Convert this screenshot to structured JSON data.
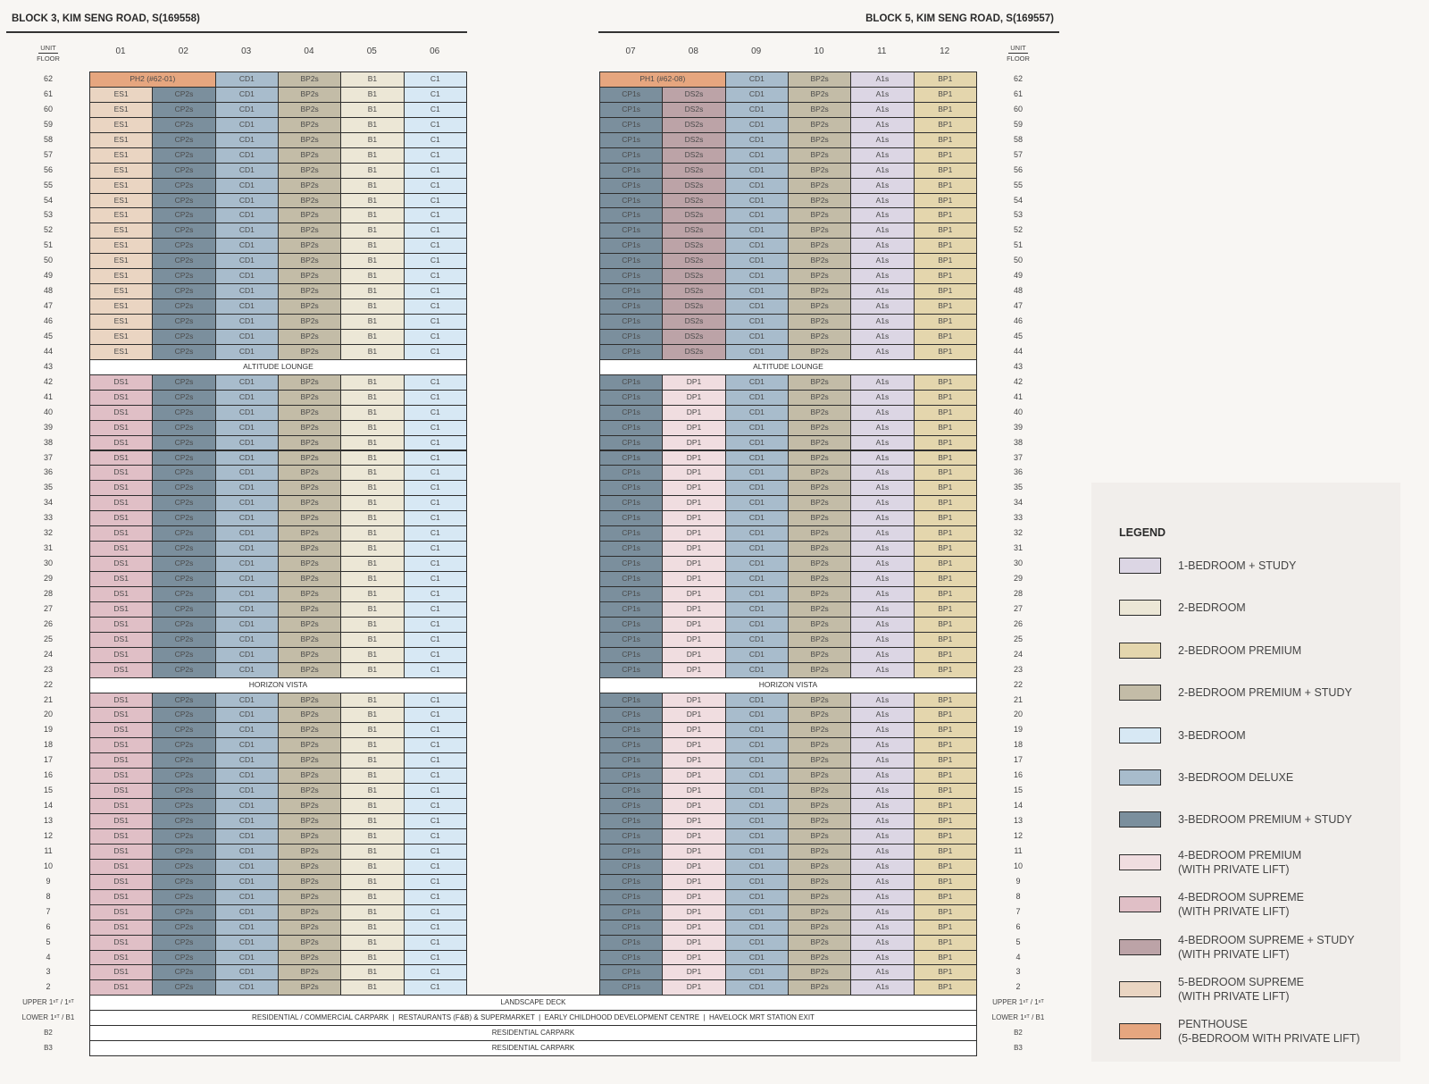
{
  "blocks": [
    {
      "title": "BLOCK 3, KIM SENG ROAD, S(169558)",
      "columns": [
        "01",
        "02",
        "03",
        "04",
        "05",
        "06"
      ]
    },
    {
      "title": "BLOCK 5, KIM SENG ROAD, S(169557)",
      "columns": [
        "07",
        "08",
        "09",
        "10",
        "11",
        "12"
      ]
    }
  ],
  "unit_floor_header": {
    "unit": "UNIT",
    "floor": "FLOOR"
  },
  "segments": [
    {
      "floors": [
        "62"
      ],
      "left": [
        "PH2 (#62-01)",
        "CD1",
        "BP2s",
        "B1",
        "C1"
      ],
      "right": [
        "PH1 (#62-08)",
        "CD1",
        "BP2s",
        "A1s",
        "BP1"
      ]
    },
    {
      "floors": [
        "61",
        "60",
        "59",
        "58",
        "57",
        "56",
        "55",
        "54",
        "53",
        "52",
        "51",
        "50",
        "49",
        "48",
        "47",
        "46",
        "45",
        "44"
      ],
      "left": [
        "ES1",
        "CP2s",
        "CD1",
        "BP2s",
        "B1",
        "C1"
      ],
      "right": [
        "CP1s",
        "DS2s",
        "CD1",
        "BP2s",
        "A1s",
        "BP1"
      ]
    },
    {
      "floors": [
        "43"
      ],
      "left": [
        "ALTITUDE LOUNGE"
      ],
      "right": [
        "ALTITUDE LOUNGE"
      ]
    },
    {
      "floors": [
        "42",
        "41",
        "40",
        "39",
        "38",
        "37",
        "36",
        "35",
        "34",
        "33",
        "32",
        "31",
        "30",
        "29",
        "28",
        "27",
        "26",
        "25",
        "24",
        "23"
      ],
      "left": [
        "DS1",
        "CP2s",
        "CD1",
        "BP2s",
        "B1",
        "C1"
      ],
      "right": [
        "CP1s",
        "DP1",
        "CD1",
        "BP2s",
        "A1s",
        "BP1"
      ]
    },
    {
      "floors": [
        "22"
      ],
      "left": [
        "HORIZON VISTA"
      ],
      "right": [
        "HORIZON VISTA"
      ]
    },
    {
      "floors": [
        "21",
        "20",
        "19",
        "18",
        "17",
        "16",
        "15",
        "14",
        "13",
        "12",
        "11",
        "10",
        "9",
        "8",
        "7",
        "6",
        "5",
        "4",
        "3",
        "2"
      ],
      "left": [
        "DS1",
        "CP2s",
        "CD1",
        "BP2s",
        "B1",
        "C1"
      ],
      "right": [
        "CP1s",
        "DP1",
        "CD1",
        "BP2s",
        "A1s",
        "BP1"
      ]
    }
  ],
  "podium": [
    {
      "floor": "UPPER 1ˢᵀ / 1ˢᵀ",
      "text": "LANDSCAPE DECK"
    },
    {
      "floor": "LOWER 1ˢᵀ / B1",
      "text": "RESIDENTIAL / COMMERCIAL CARPARK  |  RESTAURANTS (F&B) & SUPERMARKET  |  EARLY CHILDHOOD DEVELOPMENT CENTRE  |  HAVELOCK MRT STATION EXIT"
    },
    {
      "floor": "B2",
      "text": "RESIDENTIAL CARPARK"
    },
    {
      "floor": "B3",
      "text": "RESIDENTIAL CARPARK"
    }
  ],
  "unit_colors": {
    "A1s": "#dcd6e4",
    "B1": "#ece7d6",
    "BP1": "#e4d6ad",
    "BP2s": "#c3bca7",
    "C1": "#d7e8f4",
    "CD1": "#a8bccc",
    "CP2s": "#7b8f9d",
    "CP1s": "#7b8f9d",
    "DP1": "#f0dde0",
    "DS1": "#e0bfc6",
    "DS2s": "#bca3a7",
    "ES1": "#ead5c2",
    "PH": "#e6a67f",
    "amenity": "#ffffff"
  },
  "legend": {
    "title": "LEGEND",
    "items": [
      {
        "line1": "1-BEDROOM + STUDY",
        "line2": "",
        "color": "#dcd6e4"
      },
      {
        "line1": "2-BEDROOM",
        "line2": "",
        "color": "#ece7d6"
      },
      {
        "line1": "2-BEDROOM PREMIUM",
        "line2": "",
        "color": "#e4d6ad"
      },
      {
        "line1": "2-BEDROOM PREMIUM + STUDY",
        "line2": "",
        "color": "#c3bca7"
      },
      {
        "line1": "3-BEDROOM",
        "line2": "",
        "color": "#d7e8f4"
      },
      {
        "line1": "3-BEDROOM DELUXE",
        "line2": "",
        "color": "#a8bccc"
      },
      {
        "line1": "3-BEDROOM PREMIUM + STUDY",
        "line2": "",
        "color": "#7b8f9d"
      },
      {
        "line1": "4-BEDROOM PREMIUM",
        "line2": "(WITH PRIVATE LIFT)",
        "color": "#f0dde0"
      },
      {
        "line1": "4-BEDROOM SUPREME",
        "line2": "(WITH PRIVATE LIFT)",
        "color": "#e0bfc6"
      },
      {
        "line1": "4-BEDROOM SUPREME + STUDY",
        "line2": "(WITH PRIVATE LIFT)",
        "color": "#bca3a7"
      },
      {
        "line1": "5-BEDROOM SUPREME",
        "line2": "(WITH PRIVATE LIFT)",
        "color": "#ead5c2"
      },
      {
        "line1": "PENTHOUSE",
        "line2": "(5-BEDROOM WITH PRIVATE LIFT)",
        "color": "#e6a67f"
      }
    ]
  }
}
